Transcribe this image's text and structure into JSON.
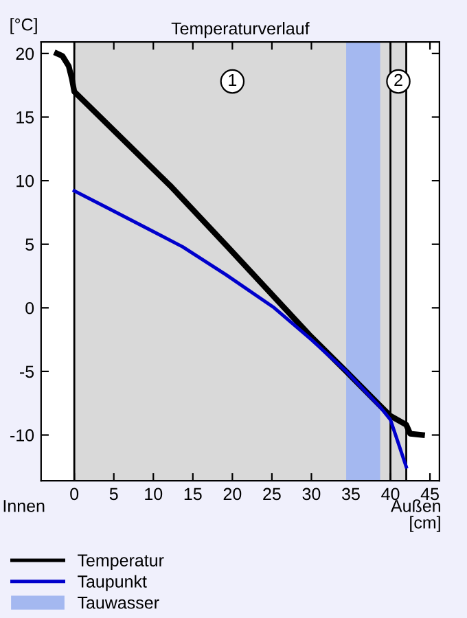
{
  "chart_data": {
    "type": "line",
    "title": "Temperaturverlauf",
    "ylabel": "[°C]",
    "xlabel": "[cm]",
    "series": [
      {
        "name": "Temperatur",
        "color": "#000000",
        "x": [
          -2.2,
          -1.5,
          -0.7,
          -0.3,
          0,
          12.3,
          19.4,
          29.7,
          34.4,
          38.7,
          40,
          42,
          42.5,
          44
        ],
        "values": [
          20,
          19.8,
          19,
          18,
          17,
          9.5,
          4.8,
          -2.1,
          -5.0,
          -7.7,
          -8.5,
          -9.2,
          -9.9,
          -10
        ]
      },
      {
        "name": "Taupunkt",
        "color": "#0000cc",
        "x": [
          0,
          5,
          10,
          13.7,
          19.2,
          25.3,
          30,
          34.4,
          38.7,
          40,
          42
        ],
        "values": [
          9.2,
          7.6,
          6.0,
          4.8,
          2.6,
          0,
          -2.5,
          -5.0,
          -7.8,
          -8.8,
          -12.5
        ]
      }
    ],
    "bands": [
      {
        "axis": "x",
        "from": 0,
        "to": 40,
        "color": "#d9d9d9"
      },
      {
        "axis": "x",
        "from": 40,
        "to": 42,
        "color": "#d9d9d9"
      },
      {
        "axis": "x",
        "from": 34.4,
        "to": 38.7,
        "color": "#a4b8f0",
        "label": "Tauwasser"
      }
    ],
    "ref_lines": [
      {
        "axis": "x",
        "value": 0,
        "color": "#000000"
      },
      {
        "axis": "x",
        "value": 40,
        "color": "#000000"
      },
      {
        "axis": "x",
        "value": 42,
        "color": "#000000"
      }
    ],
    "annotations": [
      {
        "text": "1",
        "x": 20,
        "y": 17.8
      },
      {
        "text": "2",
        "x": 41,
        "y": 17.8
      },
      "Innen",
      "Außen"
    ],
    "xlim": [
      -4.2,
      46.2
    ],
    "ylim": [
      -13.6,
      20.9
    ],
    "xticks": [
      0,
      5,
      10,
      15,
      20,
      25,
      30,
      35,
      40,
      45
    ],
    "yticks": [
      -10,
      -5,
      0,
      5,
      10,
      15,
      20
    ],
    "grid": false,
    "legend": "bottom",
    "marker": "none",
    "line_style": "solid"
  }
}
